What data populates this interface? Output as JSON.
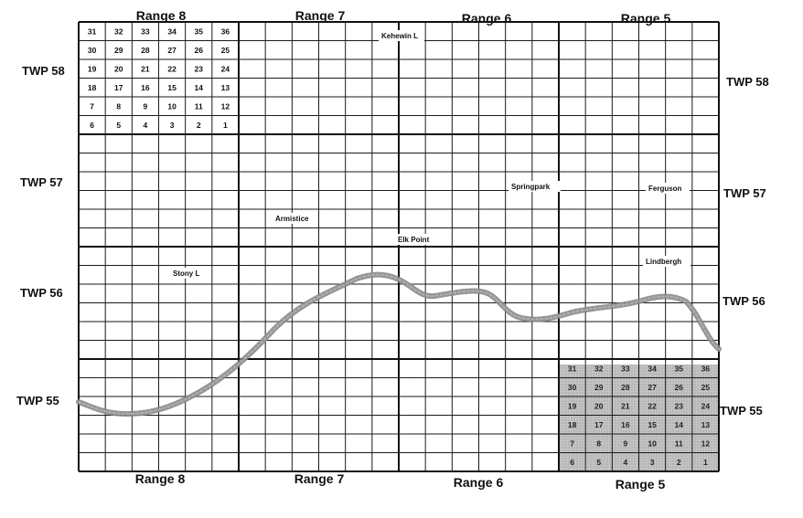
{
  "ranges_top": [
    "Range 8",
    "Range 7",
    "Range 6",
    "Range 5"
  ],
  "ranges_bottom": [
    "Range 8",
    "Range 7",
    "Range 6",
    "Range 5"
  ],
  "townships": {
    "left": [
      "TWP 58",
      "TWP 57",
      "TWP 56",
      "TWP 55"
    ],
    "right": [
      "TWP 58",
      "TWP 57",
      "TWP 56",
      "TWP 55"
    ]
  },
  "places": [
    "Kehewin L",
    "Springpark",
    "Ferguson",
    "Armistice",
    "Elk Point",
    "Lindbergh",
    "Stony L"
  ],
  "section_rows": [
    [
      31,
      32,
      33,
      34,
      35,
      36
    ],
    [
      30,
      29,
      28,
      27,
      26,
      25
    ],
    [
      19,
      20,
      21,
      22,
      23,
      24
    ],
    [
      18,
      17,
      16,
      15,
      14,
      13
    ],
    [
      7,
      8,
      9,
      10,
      11,
      12
    ],
    [
      6,
      5,
      4,
      3,
      2,
      1
    ]
  ],
  "numbered_townships": [
    {
      "range": "Range 8",
      "township": "TWP 58",
      "shaded": false
    },
    {
      "range": "Range 5",
      "township": "TWP 55",
      "shaded": true
    }
  ],
  "colors": {
    "grid": "#111111",
    "river": "#8a8a8a",
    "shade": "#bdbdbd",
    "background": "#ffffff"
  }
}
